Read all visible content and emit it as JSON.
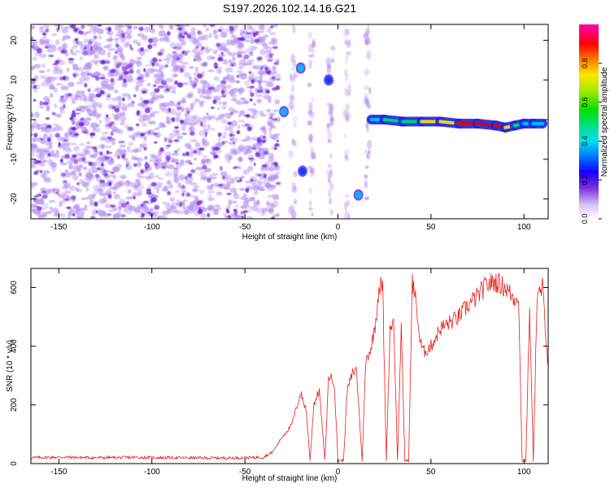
{
  "title": "S197.2026.102.14.16.G21",
  "colors": {
    "snr_line": "#e8201e",
    "spec_tint": "#b48ef0",
    "spec_dark": "#6a1fd8",
    "spec_track": "#0044ff",
    "spec_core": "#00d070",
    "spec_peak": "#e00000"
  },
  "chart_data": [
    {
      "type": "heatmap",
      "name": "spectrogram",
      "title": "S197.2026.102.14.16.G21",
      "xlabel": "Height of straight line (km)",
      "ylabel": "Frequency (Hz)",
      "xlim": [
        -165,
        113
      ],
      "ylim": [
        -25,
        24
      ],
      "xticks": [
        -150,
        -100,
        -50,
        0,
        50,
        100
      ],
      "yticks": [
        -20,
        -10,
        0,
        10,
        20
      ],
      "colorbar": {
        "label": "Normalized spectral amplitude",
        "range": [
          0.0,
          1.0
        ],
        "ticks": [
          0.0,
          0.2,
          0.4,
          0.6,
          0.8
        ]
      },
      "noise_region": {
        "x": [
          -165,
          -32
        ],
        "y": [
          -25,
          24
        ],
        "level": "0.0-0.15"
      },
      "features": [
        {
          "x": -29,
          "y": 2,
          "amplitude": 0.35
        },
        {
          "x": -20,
          "y": 13,
          "amplitude": 0.35
        },
        {
          "x": -19,
          "y": -13,
          "amplitude": 0.15
        },
        {
          "x": 11,
          "y": -19,
          "amplitude": 0.3
        },
        {
          "x": -5,
          "y": 10,
          "amplitude": 0.15
        }
      ],
      "track": {
        "x": [
          18,
          25,
          35,
          45,
          55,
          65,
          75,
          85,
          90,
          95,
          100,
          105,
          110
        ],
        "y": [
          0,
          0,
          -0.5,
          -0.5,
          -0.5,
          -1,
          -1,
          -1.5,
          -2,
          -1.5,
          -1,
          -1,
          -1
        ],
        "amplitude": [
          0.3,
          0.4,
          0.45,
          0.5,
          0.6,
          0.85,
          0.95,
          0.9,
          0.8,
          0.6,
          0.4,
          0.3,
          0.3
        ]
      }
    },
    {
      "type": "line",
      "name": "snr",
      "xlabel": "Height of straight line (km)",
      "ylabel": "SNR (10 * v/v)",
      "xlim": [
        -165,
        113
      ],
      "ylim": [
        0,
        665
      ],
      "xticks": [
        -150,
        -100,
        -50,
        0,
        50,
        100
      ],
      "yticks": [
        0,
        200,
        400,
        600
      ],
      "series": [
        {
          "name": "SNR",
          "x": [
            -165,
            -150,
            -130,
            -110,
            -90,
            -70,
            -50,
            -40,
            -35,
            -30,
            -25,
            -20,
            -17,
            -15,
            -13,
            -10,
            -7,
            -5,
            -2,
            0,
            3,
            5,
            8,
            10,
            13,
            15,
            18,
            20,
            22,
            24,
            26,
            28,
            30,
            32,
            34,
            36,
            38,
            40,
            42,
            44,
            46,
            50,
            55,
            60,
            65,
            70,
            75,
            80,
            85,
            90,
            95,
            97,
            99,
            101,
            103,
            105,
            107,
            110,
            113
          ],
          "y": [
            20,
            22,
            20,
            21,
            20,
            19,
            20,
            22,
            40,
            90,
            130,
            240,
            180,
            10,
            200,
            250,
            10,
            300,
            280,
            10,
            10,
            250,
            310,
            320,
            10,
            350,
            400,
            470,
            600,
            610,
            10,
            460,
            490,
            10,
            460,
            10,
            10,
            620,
            550,
            420,
            380,
            400,
            460,
            480,
            500,
            540,
            570,
            610,
            620,
            600,
            560,
            580,
            10,
            10,
            530,
            10,
            560,
            600,
            330
          ]
        }
      ]
    }
  ]
}
